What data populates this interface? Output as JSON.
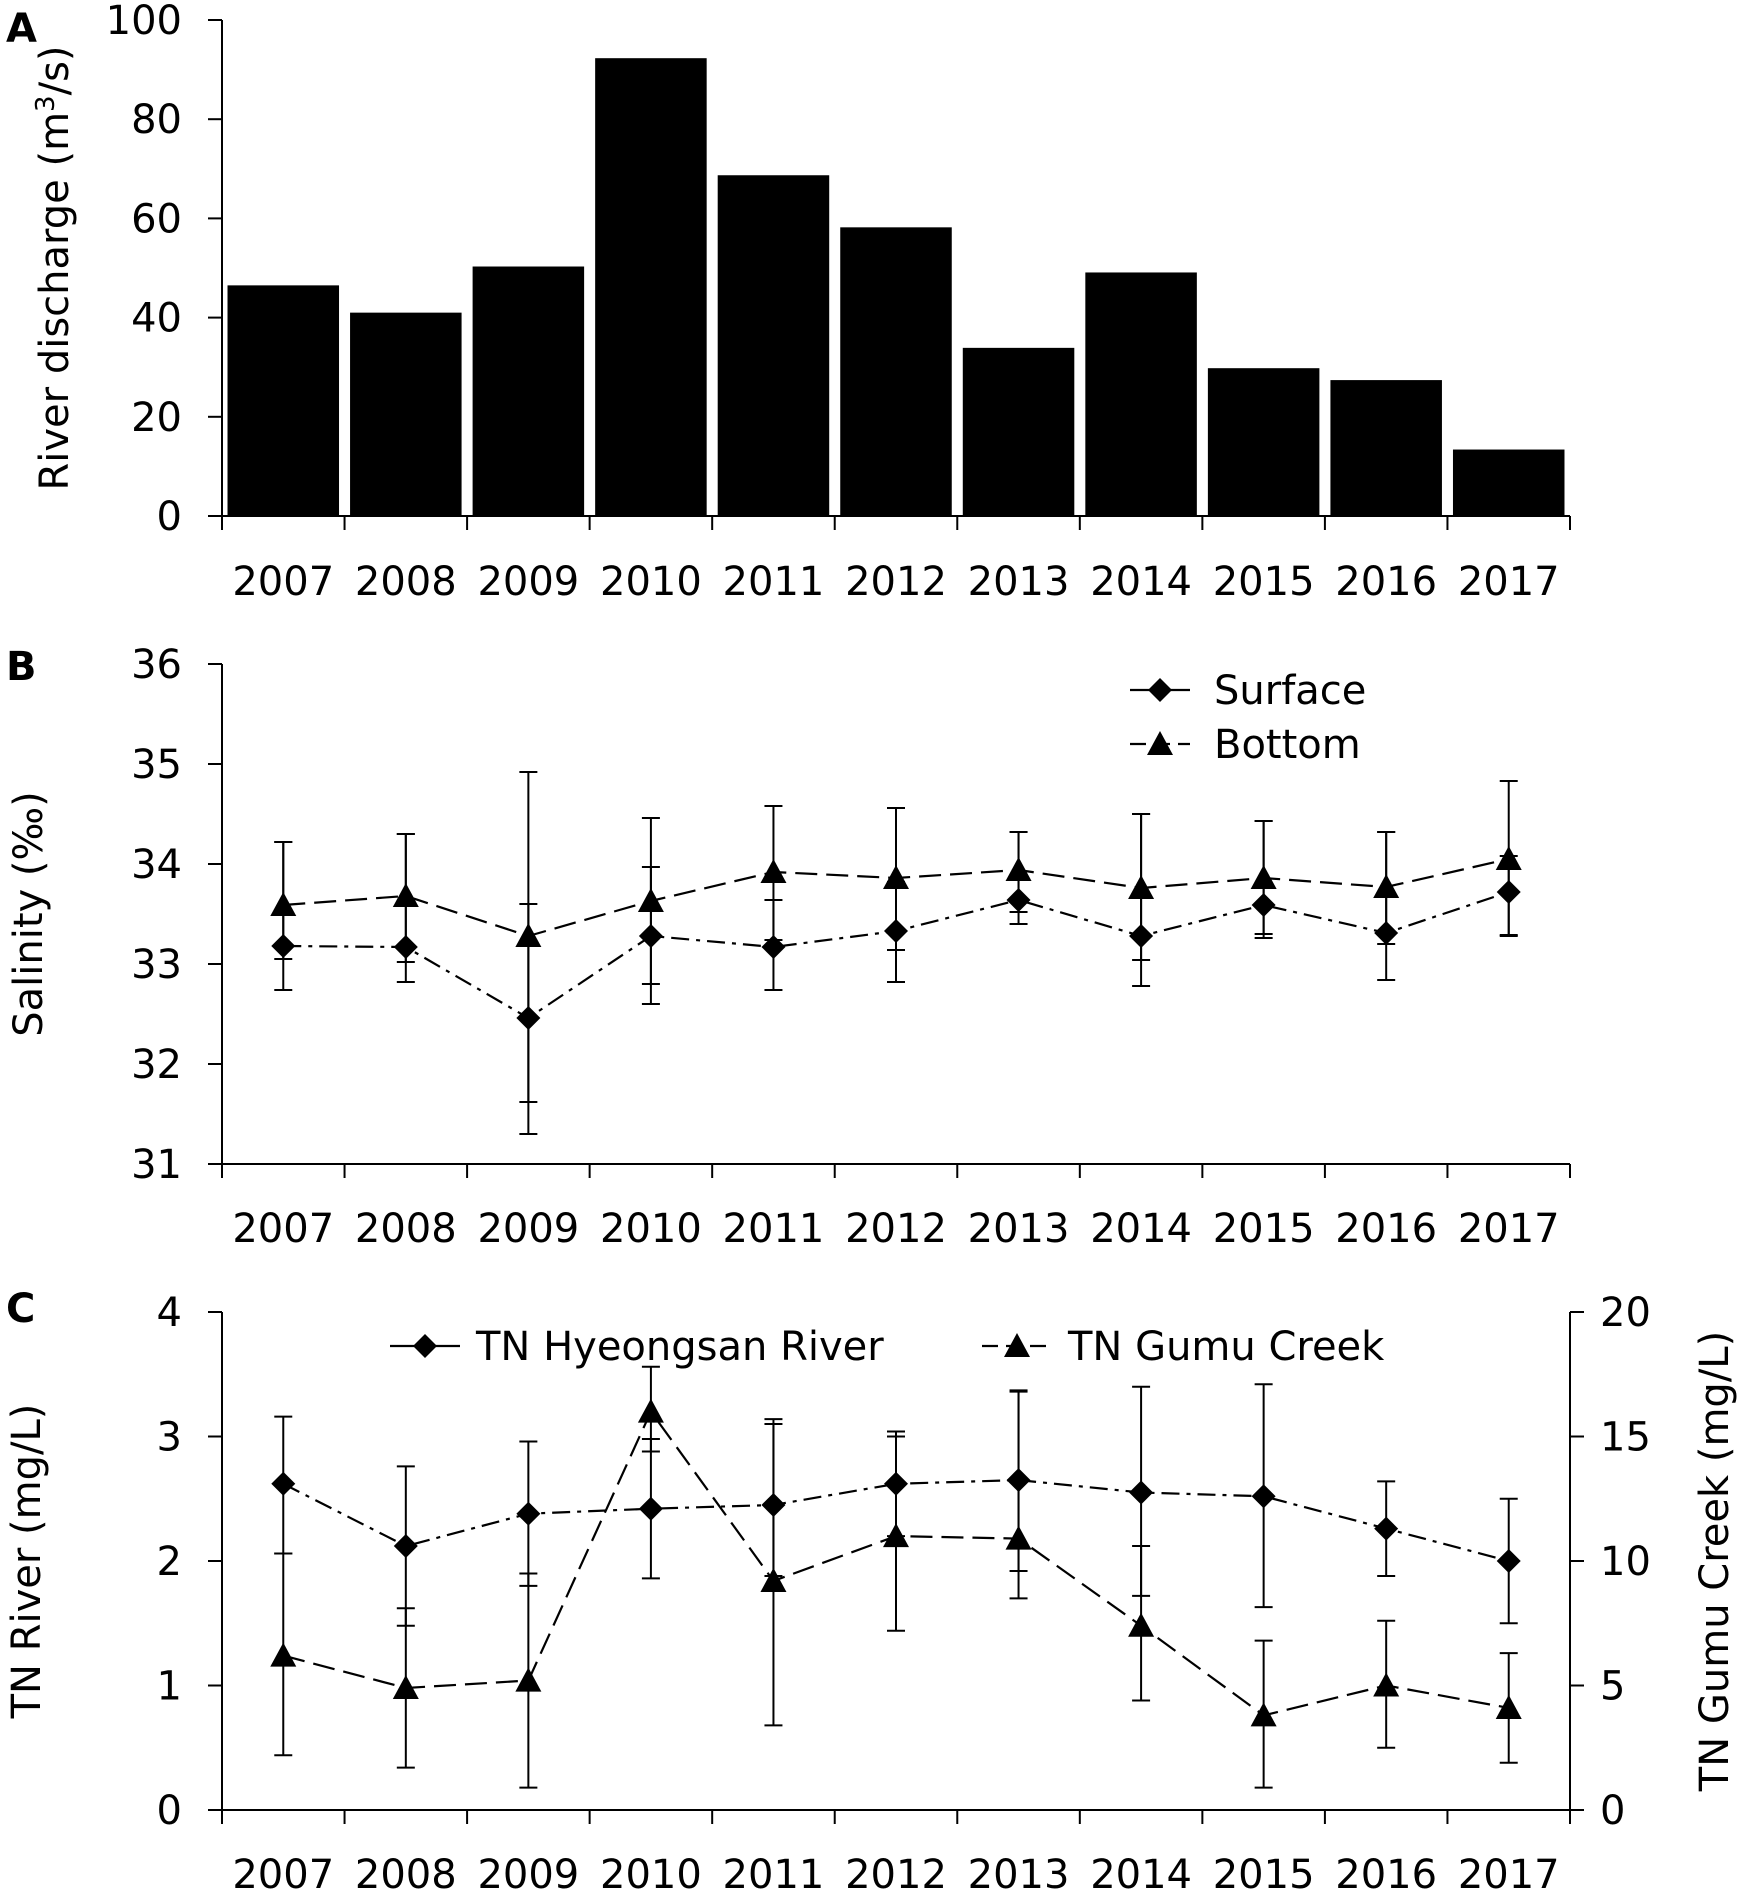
{
  "chart_data": [
    {
      "panel": "A",
      "type": "bar",
      "categories": [
        "2007",
        "2008",
        "2009",
        "2010",
        "2011",
        "2012",
        "2013",
        "2014",
        "2015",
        "2016",
        "2017"
      ],
      "values": [
        46.5,
        41,
        50.3,
        92.3,
        68.7,
        58.2,
        33.9,
        49.1,
        29.8,
        27.4,
        13.4
      ],
      "ylabel": "River discharge (m³/s)",
      "ylabel_main": "River discharge (m",
      "ylabel_sup": "3",
      "ylabel_tail": "/s)",
      "ylim": [
        0,
        100
      ],
      "yticks": [
        "0",
        "20",
        "40",
        "60",
        "80",
        "100"
      ],
      "color": "#000000"
    },
    {
      "panel": "B",
      "type": "line",
      "categories": [
        "2007",
        "2008",
        "2009",
        "2010",
        "2011",
        "2012",
        "2013",
        "2014",
        "2015",
        "2016",
        "2017"
      ],
      "ylabel": "Salinity (‰)",
      "ylim": [
        31,
        36
      ],
      "yticks": [
        "31",
        "32",
        "33",
        "34",
        "35",
        "36"
      ],
      "legend": [
        "Surface",
        "Bottom"
      ],
      "series": [
        {
          "name": "Surface",
          "marker": "diamond",
          "dash": "dashdot",
          "values": [
            33.18,
            33.17,
            32.46,
            33.28,
            33.17,
            33.33,
            33.64,
            33.28,
            33.59,
            33.31,
            33.72
          ],
          "err_low": [
            32.74,
            32.82,
            31.3,
            32.6,
            32.74,
            32.82,
            33.4,
            32.78,
            33.26,
            32.84,
            33.29
          ],
          "err_high": [
            34.22,
            34.3,
            33.6,
            33.97,
            33.64,
            33.82,
            34.32,
            34.5,
            34.43,
            34.32,
            34.08
          ]
        },
        {
          "name": "Bottom",
          "marker": "triangle",
          "dash": "dash",
          "values": [
            33.59,
            33.68,
            33.28,
            33.63,
            33.92,
            33.86,
            33.94,
            33.76,
            33.86,
            33.77,
            34.05
          ],
          "err_low": [
            33.05,
            33.02,
            31.62,
            32.8,
            33.24,
            33.14,
            33.52,
            33.04,
            33.3,
            33.2,
            33.28
          ],
          "err_high": [
            34.22,
            34.3,
            34.92,
            34.46,
            34.58,
            34.56,
            34.32,
            34.5,
            34.43,
            34.32,
            34.83
          ]
        }
      ]
    },
    {
      "panel": "C",
      "type": "line",
      "categories": [
        "2007",
        "2008",
        "2009",
        "2010",
        "2011",
        "2012",
        "2013",
        "2014",
        "2015",
        "2016",
        "2017"
      ],
      "ylabel": "TN River (mg/L)",
      "ylabel_right": "TN Gumu Creek (mg/L)",
      "ylim": [
        0,
        4
      ],
      "ylim_right": [
        0,
        20
      ],
      "yticks": [
        "0",
        "1",
        "2",
        "3",
        "4"
      ],
      "yticks_right": [
        "0",
        "5",
        "10",
        "15",
        "20"
      ],
      "legend": [
        "TN Hyeongsan River",
        "TN Gumu Creek"
      ],
      "series": [
        {
          "name": "TN Hyeongsan River",
          "axis": "left",
          "marker": "diamond",
          "dash": "dashdot",
          "values": [
            2.62,
            2.12,
            2.38,
            2.42,
            2.45,
            2.62,
            2.65,
            2.55,
            2.52,
            2.26,
            2.0
          ],
          "err_low": [
            2.06,
            1.48,
            1.8,
            1.86,
            1.88,
            2.2,
            1.92,
            1.72,
            1.63,
            1.88,
            1.5
          ],
          "err_high": [
            3.16,
            2.76,
            2.96,
            2.98,
            3.1,
            3.04,
            3.37,
            3.4,
            3.42,
            2.64,
            2.5
          ]
        },
        {
          "name": "TN Gumu Creek",
          "axis": "right",
          "marker": "triangle",
          "dash": "dash",
          "values": [
            6.2,
            4.9,
            5.2,
            16.0,
            9.2,
            11.0,
            10.9,
            7.4,
            3.8,
            5.0,
            4.1
          ],
          "err_low": [
            2.2,
            1.7,
            0.9,
            14.4,
            3.4,
            7.2,
            8.5,
            4.4,
            0.9,
            2.5,
            1.9
          ],
          "err_high": [
            10.3,
            8.1,
            9.5,
            17.8,
            15.7,
            15.0,
            16.8,
            10.6,
            6.8,
            7.6,
            6.3
          ]
        }
      ]
    }
  ]
}
